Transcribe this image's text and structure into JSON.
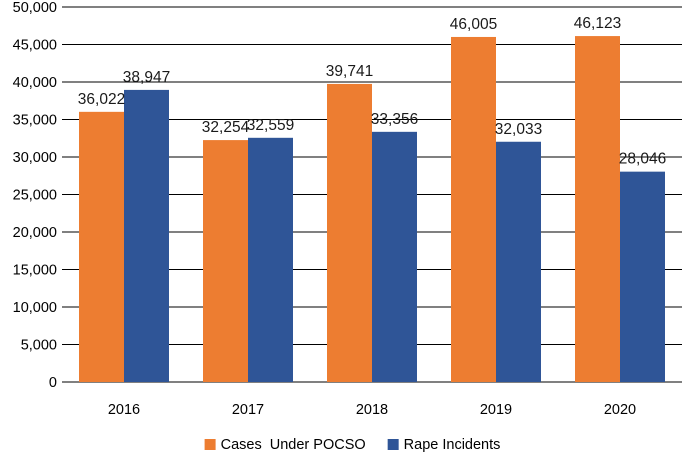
{
  "chart_data": {
    "type": "bar",
    "title": "",
    "xlabel": "",
    "ylabel": "",
    "categories": [
      "2016",
      "2017",
      "2018",
      "2019",
      "2020"
    ],
    "series": [
      {
        "name": "Cases  Under POCSO",
        "color": "#ED7D31",
        "values": [
          36022,
          32254,
          39741,
          46005,
          46123
        ],
        "labels": [
          "36,022",
          "32,254",
          "39,741",
          "46,005",
          "46,123"
        ]
      },
      {
        "name": "Rape Incidents",
        "color": "#2F5597",
        "values": [
          38947,
          32559,
          33356,
          32033,
          28046
        ],
        "labels": [
          "38,947",
          "32,559",
          "33,356",
          "32,033",
          "28,046"
        ]
      }
    ],
    "ylim": [
      0,
      50000
    ],
    "yticks": [
      0,
      5000,
      10000,
      15000,
      20000,
      25000,
      30000,
      35000,
      40000,
      45000,
      50000
    ],
    "ytick_labels": [
      "0",
      "5,000",
      "10,000",
      "15,000",
      "20,000",
      "25,000",
      "30,000",
      "35,000",
      "40,000",
      "45,000",
      "50,000"
    ],
    "grid": true,
    "legend_position": "bottom-center"
  }
}
